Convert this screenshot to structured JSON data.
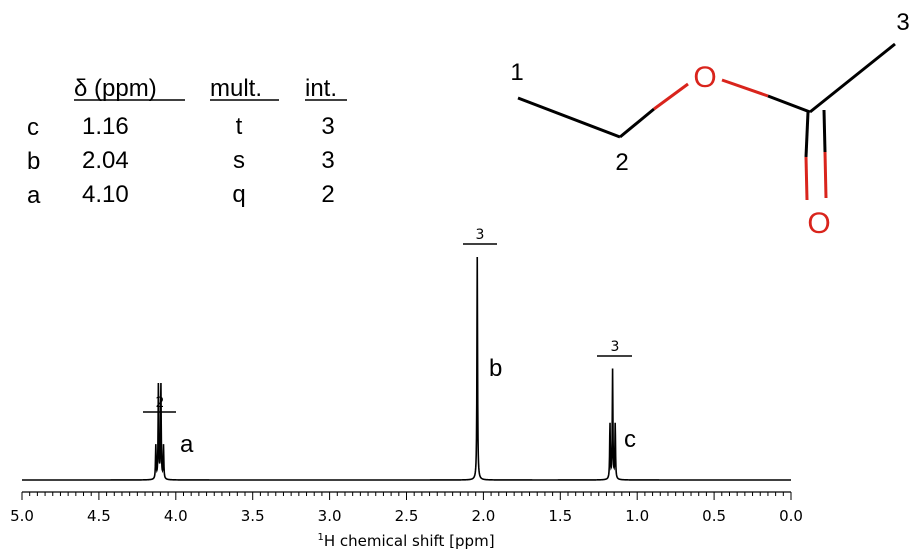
{
  "peak_table": {
    "headers": {
      "shift": "δ (ppm)",
      "mult": "mult.",
      "int": "int."
    },
    "rows": [
      {
        "label": "c",
        "shift": "1.16",
        "mult": "t",
        "int": "3"
      },
      {
        "label": "b",
        "shift": "2.04",
        "mult": "s",
        "int": "3"
      },
      {
        "label": "a",
        "shift": "4.10",
        "mult": "q",
        "int": "2"
      }
    ]
  },
  "molecule": {
    "name": "",
    "atom_labels": {
      "c1": "1",
      "c2": "2",
      "c3": "3"
    },
    "oxygen_ester": "O",
    "oxygen_carbonyl": "O",
    "colors": {
      "bond": "#000000",
      "oxygen": "#d9241c"
    }
  },
  "chart_data": {
    "type": "line",
    "title": "",
    "xlabel": "chemical shift [ppm]",
    "xlabel_superscript": "1",
    "xlabel_prefix": "H",
    "xlim": [
      5.0,
      0.0
    ],
    "x_reversed": true,
    "x_ticks": [
      "5.0",
      "4.5",
      "4.0",
      "3.5",
      "3.0",
      "2.5",
      "2.0",
      "1.5",
      "1.0",
      "0.5",
      "0.0"
    ],
    "grid": false,
    "peaks": [
      {
        "label": "a",
        "multiplicity": "q",
        "integral": "2",
        "shift": 4.1,
        "lines": [
          4.13,
          4.113,
          4.097,
          4.08
        ],
        "intensities": [
          0.15,
          0.43,
          0.43,
          0.15
        ]
      },
      {
        "label": "b",
        "multiplicity": "s",
        "integral": "3",
        "shift": 2.04,
        "lines": [
          2.04
        ],
        "intensities": [
          1.0
        ]
      },
      {
        "label": "c",
        "multiplicity": "t",
        "integral": "3",
        "shift": 1.16,
        "lines": [
          1.177,
          1.16,
          1.143
        ],
        "intensities": [
          0.25,
          0.49,
          0.25
        ]
      }
    ],
    "line_color": "#000000"
  }
}
